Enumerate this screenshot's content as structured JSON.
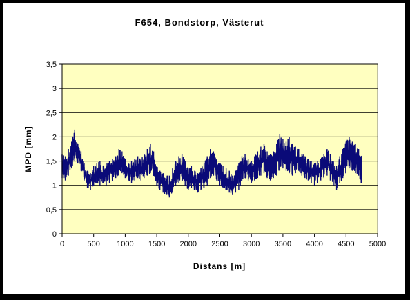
{
  "chart_data": {
    "type": "line",
    "title": "F654, Bondstorp, Västerut",
    "xlabel": "Distans [m]",
    "ylabel": "MPD [mm]",
    "xlim": [
      0,
      5000
    ],
    "ylim": [
      0,
      3.5
    ],
    "x_ticks": [
      0,
      500,
      1000,
      1500,
      2000,
      2500,
      3000,
      3500,
      4000,
      4500,
      5000
    ],
    "x_tick_labels": [
      "0",
      "500",
      "1000",
      "1500",
      "2000",
      "2500",
      "3000",
      "3500",
      "4000",
      "4500",
      "5000"
    ],
    "y_ticks": [
      0,
      0.5,
      1,
      1.5,
      2,
      2.5,
      3,
      3.5
    ],
    "y_tick_labels": [
      "0",
      "0,5",
      "1",
      "1,5",
      "2",
      "2,5",
      "3",
      "3,5"
    ],
    "grid": "horizontal",
    "legend": "none",
    "colors": {
      "line": "#0a0a78",
      "plot_bg": "#ffffc0",
      "frame_bg": "#000000"
    },
    "series": [
      {
        "x": [
          0,
          50,
          100,
          150,
          200,
          250,
          300,
          350,
          400,
          450,
          500,
          550,
          600,
          650,
          700,
          750,
          800,
          850,
          900,
          950,
          1000,
          1050,
          1100,
          1150,
          1200,
          1250,
          1300,
          1350,
          1400,
          1450,
          1500,
          1550,
          1600,
          1650,
          1700,
          1750,
          1800,
          1850,
          1900,
          1950,
          2000,
          2050,
          2100,
          2150,
          2200,
          2250,
          2300,
          2350,
          2400,
          2450,
          2500,
          2550,
          2600,
          2650,
          2700,
          2750,
          2800,
          2850,
          2900,
          2950,
          3000,
          3050,
          3100,
          3150,
          3200,
          3250,
          3300,
          3350,
          3400,
          3450,
          3500,
          3550,
          3600,
          3650,
          3700,
          3750,
          3800,
          3850,
          3900,
          3950,
          4000,
          4050,
          4100,
          4150,
          4200,
          4250,
          4300,
          4350,
          4400,
          4450,
          4500,
          4550,
          4600,
          4650,
          4700,
          4740
        ],
        "low": [
          1.15,
          1.1,
          1.2,
          1.35,
          1.5,
          1.45,
          1.3,
          1.1,
          0.95,
          0.9,
          1.0,
          1.05,
          1.0,
          1.05,
          1.0,
          1.05,
          1.1,
          1.15,
          1.2,
          1.25,
          1.15,
          1.1,
          1.05,
          1.1,
          1.15,
          1.1,
          1.15,
          1.2,
          1.25,
          1.2,
          1.0,
          0.9,
          0.85,
          0.8,
          0.75,
          0.85,
          1.0,
          1.05,
          1.1,
          1.0,
          0.9,
          0.95,
          0.9,
          0.85,
          0.9,
          0.95,
          1.0,
          1.15,
          1.2,
          1.1,
          1.0,
          0.95,
          0.9,
          0.85,
          0.8,
          0.85,
          0.9,
          1.1,
          1.15,
          1.1,
          1.05,
          1.1,
          1.15,
          1.2,
          1.25,
          1.15,
          1.1,
          1.15,
          1.2,
          1.3,
          1.35,
          1.3,
          1.25,
          1.2,
          1.25,
          1.3,
          1.2,
          1.15,
          1.1,
          1.05,
          1.0,
          1.05,
          1.1,
          1.15,
          1.2,
          1.1,
          1.0,
          0.9,
          1.05,
          1.15,
          1.25,
          1.35,
          1.3,
          1.25,
          1.2,
          1.05
        ],
        "high": [
          1.65,
          1.6,
          1.75,
          1.9,
          2.15,
          1.85,
          1.7,
          1.45,
          1.3,
          1.25,
          1.4,
          1.45,
          1.5,
          1.4,
          1.45,
          1.5,
          1.55,
          1.6,
          1.75,
          1.7,
          1.55,
          1.45,
          1.5,
          1.55,
          1.6,
          1.55,
          1.65,
          1.75,
          1.85,
          1.7,
          1.4,
          1.3,
          1.25,
          1.2,
          1.2,
          1.35,
          1.5,
          1.6,
          1.65,
          1.5,
          1.35,
          1.4,
          1.3,
          1.25,
          1.35,
          1.45,
          1.6,
          1.75,
          1.7,
          1.55,
          1.45,
          1.4,
          1.35,
          1.3,
          1.2,
          1.3,
          1.45,
          1.6,
          1.65,
          1.55,
          1.5,
          1.6,
          1.7,
          1.8,
          1.85,
          1.7,
          1.65,
          1.7,
          1.85,
          2.05,
          1.95,
          1.9,
          2.0,
          1.85,
          1.8,
          1.75,
          1.65,
          1.6,
          1.55,
          1.5,
          1.45,
          1.5,
          1.55,
          1.65,
          1.75,
          1.65,
          1.5,
          1.4,
          1.6,
          1.75,
          1.9,
          2.0,
          1.9,
          1.85,
          1.75,
          1.6
        ]
      }
    ]
  }
}
